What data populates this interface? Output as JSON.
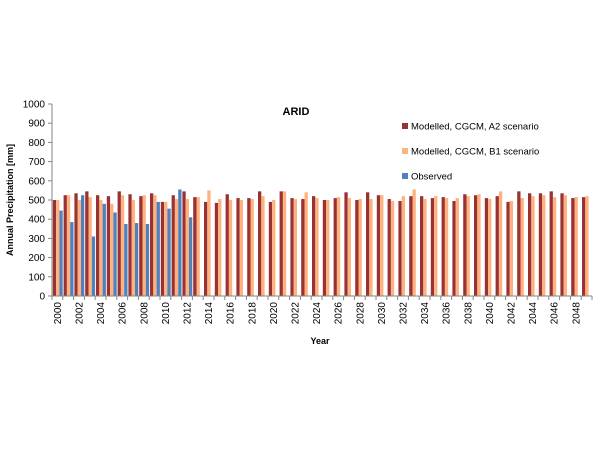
{
  "chart_data": {
    "type": "bar",
    "title": "ARID",
    "xlabel": "Year",
    "ylabel": "Annual Precipitation   [mm]",
    "ylim": [
      0,
      1000
    ],
    "yticks": [
      0,
      100,
      200,
      300,
      400,
      500,
      600,
      700,
      800,
      900,
      1000
    ],
    "grid": false,
    "legend_position": "right",
    "categories": [
      "2000",
      "2001",
      "2002",
      "2003",
      "2004",
      "2005",
      "2006",
      "2007",
      "2008",
      "2009",
      "2010",
      "2011",
      "2012",
      "2013",
      "2014",
      "2015",
      "2016",
      "2017",
      "2018",
      "2019",
      "2020",
      "2021",
      "2022",
      "2023",
      "2024",
      "2025",
      "2026",
      "2027",
      "2028",
      "2029",
      "2030",
      "2031",
      "2032",
      "2033",
      "2034",
      "2035",
      "2036",
      "2037",
      "2038",
      "2039",
      "2040",
      "2041",
      "2042",
      "2043",
      "2044",
      "2045",
      "2046",
      "2047",
      "2048",
      "2049"
    ],
    "tick_labels": [
      "2000",
      "2002",
      "2004",
      "2006",
      "2008",
      "2010",
      "2012",
      "2014",
      "2016",
      "2018",
      "2020",
      "2022",
      "2024",
      "2026",
      "2028",
      "2030",
      "2032",
      "2034",
      "2036",
      "2038",
      "2040",
      "2042",
      "2044",
      "2046",
      "2048"
    ],
    "series": [
      {
        "name": "Modelled, CGCM, A2 scenario",
        "color": "#993333",
        "values": [
          500,
          525,
          535,
          545,
          525,
          520,
          545,
          530,
          520,
          535,
          490,
          525,
          545,
          515,
          490,
          485,
          530,
          510,
          510,
          545,
          490,
          545,
          510,
          505,
          520,
          500,
          510,
          540,
          500,
          540,
          525,
          505,
          495,
          520,
          520,
          510,
          515,
          495,
          530,
          525,
          510,
          520,
          490,
          545,
          535,
          535,
          545,
          535,
          510,
          515
        ]
      },
      {
        "name": "Modelled, CGCM, B1 scenario",
        "color": "#FFB27F",
        "values": [
          500,
          525,
          500,
          515,
          500,
          480,
          525,
          500,
          525,
          525,
          490,
          505,
          505,
          515,
          550,
          505,
          500,
          500,
          505,
          520,
          500,
          545,
          505,
          540,
          510,
          500,
          515,
          510,
          505,
          505,
          525,
          495,
          520,
          555,
          505,
          520,
          510,
          510,
          520,
          530,
          505,
          545,
          495,
          510,
          520,
          525,
          515,
          525,
          515,
          520
        ]
      },
      {
        "name": "Observed",
        "color": "#4F81BD",
        "values": [
          445,
          385,
          525,
          310,
          480,
          435,
          375,
          380,
          375,
          490,
          455,
          555,
          410,
          null,
          null,
          null,
          null,
          null,
          null,
          null,
          null,
          null,
          null,
          null,
          null,
          null,
          null,
          null,
          null,
          null,
          null,
          null,
          null,
          null,
          null,
          null,
          null,
          null,
          null,
          null,
          null,
          null,
          null,
          null,
          null,
          null,
          null,
          null,
          null,
          null
        ]
      }
    ]
  }
}
